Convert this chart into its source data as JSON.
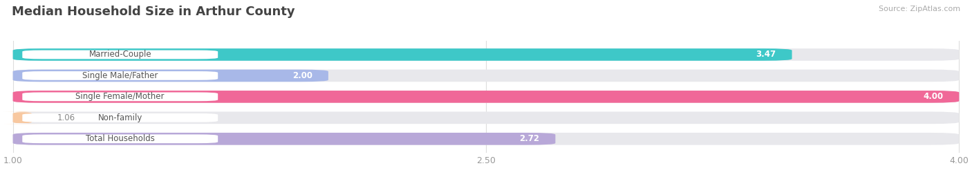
{
  "title": "Median Household Size in Arthur County",
  "source": "Source: ZipAtlas.com",
  "categories": [
    "Married-Couple",
    "Single Male/Father",
    "Single Female/Mother",
    "Non-family",
    "Total Households"
  ],
  "values": [
    3.47,
    2.0,
    4.0,
    1.06,
    2.72
  ],
  "colors": [
    "#3ec8c8",
    "#a8b8e8",
    "#f06898",
    "#f8c8a0",
    "#b8a8d8"
  ],
  "x_min": 1.0,
  "x_max": 4.0,
  "x_ticks": [
    1.0,
    2.5,
    4.0
  ],
  "bar_height": 0.58,
  "background_color": "#ffffff",
  "bar_bg_color": "#e8e8ec",
  "label_fontsize": 8.5,
  "value_fontsize": 8.5,
  "title_fontsize": 13,
  "title_color": "#444444",
  "label_text_color": "#555555",
  "value_text_color_inside": "#ffffff",
  "value_text_color_outside": "#888888",
  "source_color": "#aaaaaa"
}
